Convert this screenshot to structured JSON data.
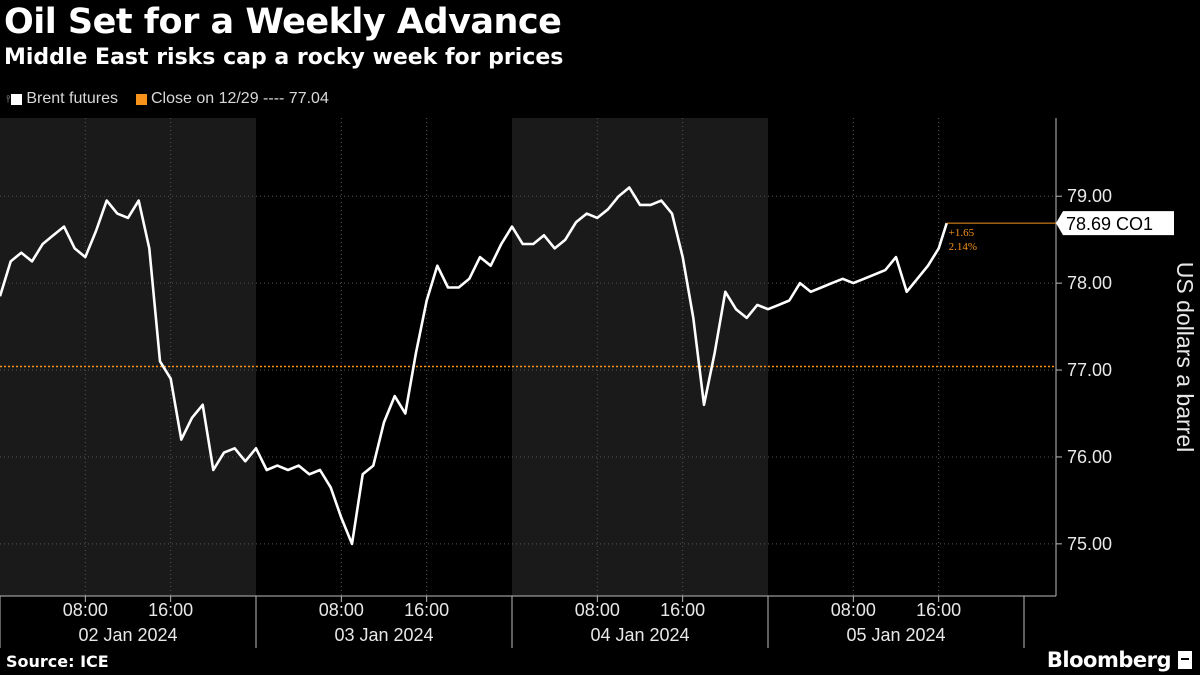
{
  "title": "Oil Set for a Weekly Advance",
  "subtitle": "Middle East risks cap a rocky week for prices",
  "legend": {
    "series_label": "Brent futures",
    "reference_label": "Close on 12/29 ---- 77.04"
  },
  "source": "Source: ICE",
  "brand": "Bloomberg",
  "colors": {
    "background": "#000000",
    "line": "#ffffff",
    "reference": "#f7931a",
    "shade": "#1a1a1a",
    "grid": "#555555"
  },
  "chart_data": {
    "type": "line",
    "ylabel": "US dollars a barrel",
    "ylim": [
      74.4,
      79.9
    ],
    "yticks": [
      "75.00",
      "76.00",
      "77.00",
      "78.00",
      "79.00"
    ],
    "x_time_labels": [
      "08:00",
      "16:00",
      "08:00",
      "16:00",
      "08:00",
      "16:00",
      "08:00",
      "16:00"
    ],
    "x_date_labels": [
      "02 Jan 2024",
      "03 Jan 2024",
      "04 Jan 2024",
      "05 Jan 2024"
    ],
    "reference": {
      "label": "Close on 12/29",
      "value": 77.04
    },
    "last": {
      "label": "78.69 CO1",
      "value": 78.69,
      "change": "+1.65",
      "change_pct": "2.14%"
    },
    "series": [
      {
        "name": "Brent futures",
        "points": [
          [
            "02 Jan 2024 00:00",
            77.85
          ],
          [
            "02 Jan 2024 01:00",
            78.25
          ],
          [
            "02 Jan 2024 02:00",
            78.35
          ],
          [
            "02 Jan 2024 03:00",
            78.25
          ],
          [
            "02 Jan 2024 04:00",
            78.45
          ],
          [
            "02 Jan 2024 05:00",
            78.55
          ],
          [
            "02 Jan 2024 06:00",
            78.65
          ],
          [
            "02 Jan 2024 07:00",
            78.4
          ],
          [
            "02 Jan 2024 08:00",
            78.3
          ],
          [
            "02 Jan 2024 09:00",
            78.6
          ],
          [
            "02 Jan 2024 10:00",
            78.95
          ],
          [
            "02 Jan 2024 11:00",
            78.8
          ],
          [
            "02 Jan 2024 12:00",
            78.75
          ],
          [
            "02 Jan 2024 13:00",
            78.95
          ],
          [
            "02 Jan 2024 14:00",
            78.4
          ],
          [
            "02 Jan 2024 15:00",
            77.1
          ],
          [
            "02 Jan 2024 16:00",
            76.9
          ],
          [
            "02 Jan 2024 17:00",
            76.2
          ],
          [
            "02 Jan 2024 18:00",
            76.45
          ],
          [
            "02 Jan 2024 19:00",
            76.6
          ],
          [
            "02 Jan 2024 20:00",
            75.85
          ],
          [
            "02 Jan 2024 21:00",
            76.05
          ],
          [
            "02 Jan 2024 22:00",
            76.1
          ],
          [
            "02 Jan 2024 23:00",
            75.95
          ],
          [
            "03 Jan 2024 00:00",
            76.1
          ],
          [
            "03 Jan 2024 01:00",
            75.85
          ],
          [
            "03 Jan 2024 02:00",
            75.9
          ],
          [
            "03 Jan 2024 03:00",
            75.85
          ],
          [
            "03 Jan 2024 04:00",
            75.9
          ],
          [
            "03 Jan 2024 05:00",
            75.8
          ],
          [
            "03 Jan 2024 06:00",
            75.85
          ],
          [
            "03 Jan 2024 07:00",
            75.65
          ],
          [
            "03 Jan 2024 08:00",
            75.3
          ],
          [
            "03 Jan 2024 09:00",
            75.0
          ],
          [
            "03 Jan 2024 10:00",
            75.8
          ],
          [
            "03 Jan 2024 11:00",
            75.9
          ],
          [
            "03 Jan 2024 12:00",
            76.4
          ],
          [
            "03 Jan 2024 13:00",
            76.7
          ],
          [
            "03 Jan 2024 14:00",
            76.5
          ],
          [
            "03 Jan 2024 15:00",
            77.2
          ],
          [
            "03 Jan 2024 16:00",
            77.8
          ],
          [
            "03 Jan 2024 17:00",
            78.2
          ],
          [
            "03 Jan 2024 18:00",
            77.95
          ],
          [
            "03 Jan 2024 19:00",
            77.95
          ],
          [
            "03 Jan 2024 20:00",
            78.05
          ],
          [
            "03 Jan 2024 21:00",
            78.3
          ],
          [
            "03 Jan 2024 22:00",
            78.2
          ],
          [
            "03 Jan 2024 23:00",
            78.45
          ],
          [
            "04 Jan 2024 00:00",
            78.65
          ],
          [
            "04 Jan 2024 01:00",
            78.45
          ],
          [
            "04 Jan 2024 02:00",
            78.45
          ],
          [
            "04 Jan 2024 03:00",
            78.55
          ],
          [
            "04 Jan 2024 04:00",
            78.4
          ],
          [
            "04 Jan 2024 05:00",
            78.5
          ],
          [
            "04 Jan 2024 06:00",
            78.7
          ],
          [
            "04 Jan 2024 07:00",
            78.8
          ],
          [
            "04 Jan 2024 08:00",
            78.75
          ],
          [
            "04 Jan 2024 09:00",
            78.85
          ],
          [
            "04 Jan 2024 10:00",
            79.0
          ],
          [
            "04 Jan 2024 11:00",
            79.1
          ],
          [
            "04 Jan 2024 12:00",
            78.9
          ],
          [
            "04 Jan 2024 13:00",
            78.9
          ],
          [
            "04 Jan 2024 14:00",
            78.95
          ],
          [
            "04 Jan 2024 15:00",
            78.8
          ],
          [
            "04 Jan 2024 16:00",
            78.3
          ],
          [
            "04 Jan 2024 17:00",
            77.6
          ],
          [
            "04 Jan 2024 18:00",
            76.6
          ],
          [
            "04 Jan 2024 19:00",
            77.2
          ],
          [
            "04 Jan 2024 20:00",
            77.9
          ],
          [
            "04 Jan 2024 21:00",
            77.7
          ],
          [
            "04 Jan 2024 22:00",
            77.6
          ],
          [
            "04 Jan 2024 23:00",
            77.75
          ],
          [
            "05 Jan 2024 00:00",
            77.7
          ],
          [
            "05 Jan 2024 01:00",
            77.75
          ],
          [
            "05 Jan 2024 02:00",
            77.8
          ],
          [
            "05 Jan 2024 03:00",
            78.0
          ],
          [
            "05 Jan 2024 04:00",
            77.9
          ],
          [
            "05 Jan 2024 05:00",
            77.95
          ],
          [
            "05 Jan 2024 06:00",
            78.0
          ],
          [
            "05 Jan 2024 07:00",
            78.05
          ],
          [
            "05 Jan 2024 08:00",
            78.0
          ],
          [
            "05 Jan 2024 09:00",
            78.05
          ],
          [
            "05 Jan 2024 10:00",
            78.1
          ],
          [
            "05 Jan 2024 11:00",
            78.15
          ],
          [
            "05 Jan 2024 12:00",
            78.3
          ],
          [
            "05 Jan 2024 13:00",
            77.9
          ],
          [
            "05 Jan 2024 14:00",
            78.05
          ],
          [
            "05 Jan 2024 15:00",
            78.2
          ],
          [
            "05 Jan 2024 16:00",
            78.4
          ],
          [
            "05 Jan 2024 16:45",
            78.69
          ]
        ]
      }
    ]
  }
}
